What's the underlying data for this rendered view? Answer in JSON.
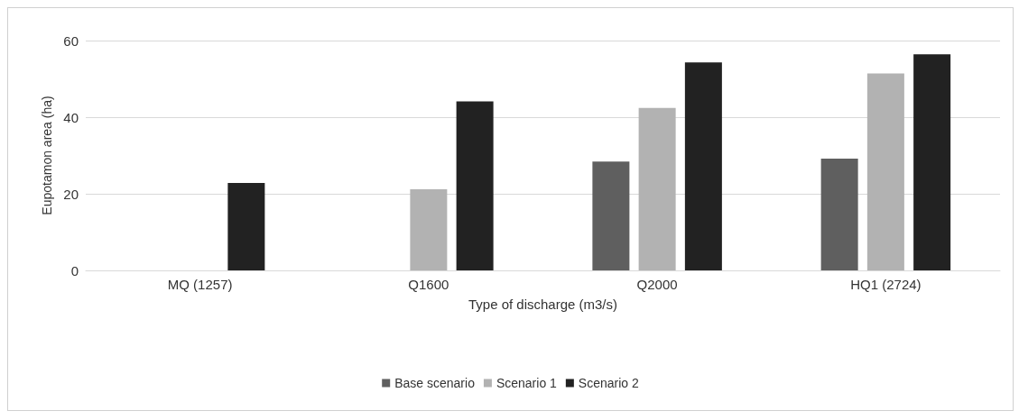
{
  "chart_data": {
    "type": "bar",
    "xlabel": "Type of discharge (m3/s)",
    "ylabel": "Eupotamon area (ha)",
    "categories": [
      "MQ (1257)",
      "Q1600",
      "Q2000",
      "HQ1 (2724)"
    ],
    "series": [
      {
        "name": "Base scenario",
        "color": "#5f5f5f",
        "values": [
          0,
          0,
          28.4,
          29.2
        ]
      },
      {
        "name": "Scenario 1",
        "color": "#b2b2b2",
        "values": [
          0,
          21.2,
          42.4,
          51.4
        ]
      },
      {
        "name": "Scenario 2",
        "color": "#222222",
        "values": [
          22.8,
          44.1,
          54.3,
          56.4
        ]
      }
    ],
    "ylim": [
      0,
      60
    ],
    "yticks": [
      0,
      20,
      40,
      60
    ],
    "grid": "y",
    "legend": "bottom"
  }
}
